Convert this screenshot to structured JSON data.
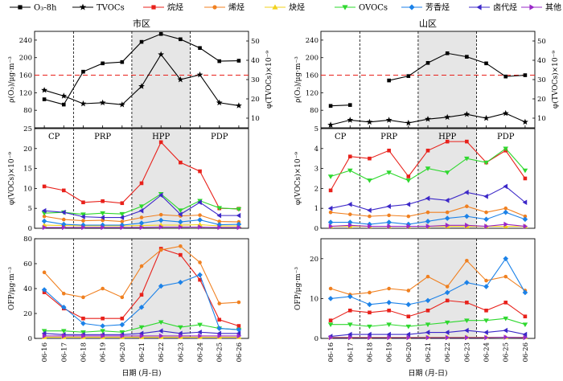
{
  "legend": [
    {
      "key": "O3",
      "label": "O₃-8h",
      "color": "#000000",
      "marker": "square"
    },
    {
      "key": "TVOCs",
      "label": "TVOCs",
      "color": "#000000",
      "marker": "star"
    },
    {
      "key": "alkane",
      "label": "烷烃",
      "color": "#e8211b",
      "marker": "square"
    },
    {
      "key": "alkene",
      "label": "烯烃",
      "color": "#f08020",
      "marker": "circle"
    },
    {
      "key": "alkyne",
      "label": "炔烃",
      "color": "#f2d21c",
      "marker": "triangle-up"
    },
    {
      "key": "ovocs",
      "label": "OVOCs",
      "color": "#2ed82e",
      "marker": "triangle-down"
    },
    {
      "key": "aromatic",
      "label": "芳香烃",
      "color": "#1c82e8",
      "marker": "diamond"
    },
    {
      "key": "halo",
      "label": "卤代烃",
      "color": "#3c28c8",
      "marker": "triangle-left"
    },
    {
      "key": "other",
      "label": "其他",
      "color": "#9a28c8",
      "marker": "triangle-right"
    }
  ],
  "xlabel": "日期 (月-日)",
  "dates": [
    "06-16",
    "06-17",
    "06-18",
    "06-19",
    "06-20",
    "06-21",
    "06-22",
    "06-23",
    "06-24",
    "06-25",
    "06-26"
  ],
  "phases": [
    "CP",
    "PRP",
    "HPP",
    "PDP"
  ],
  "phase_boundaries": [
    1.5,
    4.5,
    7.5
  ],
  "shaded_range": [
    4.5,
    7.5
  ],
  "threshold": {
    "value": 160,
    "color": "#e8211b"
  },
  "chart_data": [
    {
      "type": "line",
      "title": "市区",
      "ylabel_left": "ρ(O₃)/μg·m⁻³",
      "ylabel_right": "φ(TVOCs)×10⁻⁹",
      "ylim_left": [
        40,
        260
      ],
      "yticks_left": [
        80,
        120,
        160,
        200,
        240
      ],
      "ylim_right": [
        5,
        55
      ],
      "yticks_right": [
        10,
        20,
        30,
        40,
        50
      ],
      "series": [
        {
          "key": "O3",
          "axis": "left",
          "values": [
            105,
            93,
            168,
            187,
            190,
            236,
            254,
            242,
            222,
            192,
            193
          ]
        },
        {
          "key": "TVOCs",
          "axis": "right",
          "values": [
            24.5,
            21.5,
            17.5,
            18,
            17,
            26.5,
            43,
            30,
            32.5,
            18,
            16.5
          ]
        }
      ]
    },
    {
      "type": "line",
      "title": "山区",
      "ylabel_left": "ρ(O₃)/μg·m⁻³",
      "ylabel_right": "φ(TVOCs)×10⁻⁹",
      "ylim_left": [
        40,
        260
      ],
      "yticks_left": [
        80,
        120,
        160,
        200,
        240
      ],
      "ylim_right": [
        5,
        55
      ],
      "yticks_right": [
        10,
        20,
        30,
        40,
        50
      ],
      "series": [
        {
          "key": "O3",
          "axis": "left",
          "values": [
            90,
            92,
            null,
            148,
            158,
            188,
            210,
            202,
            187,
            157,
            160
          ]
        },
        {
          "key": "TVOCs",
          "axis": "right",
          "values": [
            6.5,
            9,
            8,
            9,
            7.5,
            9.5,
            10.5,
            12,
            10,
            12.5,
            8
          ]
        }
      ]
    },
    {
      "type": "line",
      "ylabel": "φ(VOCs)×10⁻⁹",
      "ylim": [
        0,
        25
      ],
      "yticks": [
        0,
        5,
        10,
        15,
        20,
        25
      ],
      "series": [
        {
          "key": "alkane",
          "values": [
            10.5,
            9.5,
            6.5,
            6.8,
            6.3,
            11.3,
            21.6,
            16.5,
            14.3,
            5.0,
            4.9
          ]
        },
        {
          "key": "alkene",
          "values": [
            3.0,
            2.2,
            1.9,
            2.0,
            1.7,
            2.7,
            3.4,
            3.1,
            3.3,
            1.7,
            1.6
          ]
        },
        {
          "key": "alkyne",
          "values": [
            0.8,
            0.7,
            0.6,
            0.6,
            0.6,
            0.7,
            0.8,
            0.8,
            0.9,
            0.6,
            0.6
          ]
        },
        {
          "key": "ovocs",
          "values": [
            3.8,
            4.0,
            3.5,
            3.8,
            3.6,
            5.5,
            8.6,
            4.5,
            6.9,
            5.1,
            4.8
          ]
        },
        {
          "key": "aromatic",
          "values": [
            1.8,
            1.0,
            0.8,
            0.8,
            0.8,
            1.3,
            2.0,
            1.6,
            2.1,
            0.9,
            1.0
          ]
        },
        {
          "key": "halo",
          "values": [
            4.4,
            4.0,
            2.9,
            2.7,
            2.7,
            4.4,
            8.3,
            3.5,
            6.5,
            3.2,
            3.2
          ]
        },
        {
          "key": "other",
          "values": [
            0.2,
            0.2,
            0.2,
            0.2,
            0.2,
            0.2,
            0.3,
            0.3,
            0.3,
            0.2,
            0.2
          ]
        }
      ]
    },
    {
      "type": "line",
      "ylabel": "φ(VOCs)×10⁻⁹",
      "ylim": [
        0,
        5
      ],
      "yticks": [
        0,
        1,
        2,
        3,
        4,
        5
      ],
      "series": [
        {
          "key": "alkane",
          "values": [
            1.9,
            3.6,
            3.5,
            3.9,
            2.6,
            3.9,
            4.35,
            4.35,
            3.3,
            3.9,
            2.5
          ]
        },
        {
          "key": "alkene",
          "values": [
            0.8,
            0.7,
            0.6,
            0.65,
            0.6,
            0.8,
            0.8,
            1.1,
            0.8,
            1.0,
            0.6
          ]
        },
        {
          "key": "alkyne",
          "values": [
            0.1,
            0.1,
            0.1,
            0.1,
            0.1,
            0.1,
            0.1,
            0.1,
            0.1,
            0.1,
            0.1
          ]
        },
        {
          "key": "ovocs",
          "values": [
            2.6,
            2.9,
            2.4,
            2.8,
            2.4,
            3.0,
            2.8,
            3.5,
            3.3,
            4.0,
            2.9
          ]
        },
        {
          "key": "aromatic",
          "values": [
            0.3,
            0.3,
            0.2,
            0.3,
            0.2,
            0.35,
            0.5,
            0.6,
            0.45,
            0.8,
            0.45
          ]
        },
        {
          "key": "halo",
          "values": [
            1.0,
            1.2,
            0.9,
            1.1,
            1.2,
            1.5,
            1.4,
            1.8,
            1.6,
            2.1,
            1.3
          ]
        },
        {
          "key": "other",
          "values": [
            0.1,
            0.15,
            0.1,
            0.1,
            0.1,
            0.1,
            0.15,
            0.15,
            0.1,
            0.2,
            0.1
          ]
        }
      ]
    },
    {
      "type": "line",
      "ylabel": "OFP/μg·m⁻³",
      "ylim": [
        0,
        80
      ],
      "yticks": [
        0,
        20,
        40,
        60,
        80
      ],
      "series": [
        {
          "key": "alkane",
          "values": [
            37,
            24,
            16,
            16,
            16,
            35,
            72,
            67,
            47,
            15,
            10
          ]
        },
        {
          "key": "alkene",
          "values": [
            53,
            36,
            33,
            40,
            33,
            58,
            71,
            74,
            61,
            28,
            29
          ]
        },
        {
          "key": "alkyne",
          "values": [
            1,
            1,
            1,
            1,
            1,
            1,
            1,
            1,
            1,
            1,
            1
          ]
        },
        {
          "key": "ovocs",
          "values": [
            6,
            6,
            5,
            6,
            5,
            9,
            13,
            9,
            11,
            8,
            7
          ]
        },
        {
          "key": "aromatic",
          "values": [
            39,
            25,
            12,
            10,
            11,
            25,
            42,
            45,
            51,
            8,
            7
          ]
        },
        {
          "key": "halo",
          "values": [
            4,
            3,
            3,
            3,
            3,
            4,
            6,
            4,
            5,
            4,
            4
          ]
        },
        {
          "key": "other",
          "values": [
            2,
            2,
            2,
            2,
            2,
            2,
            2,
            2,
            2,
            2,
            2
          ]
        }
      ]
    },
    {
      "type": "line",
      "ylabel": "OFP/μg·m⁻³",
      "ylim": [
        0,
        25
      ],
      "yticks": [
        0,
        10,
        20
      ],
      "series": [
        {
          "key": "alkane",
          "values": [
            4.5,
            7.0,
            6.5,
            7.0,
            5.5,
            7.0,
            9.5,
            9.0,
            7.0,
            9.0,
            5.5
          ]
        },
        {
          "key": "alkene",
          "values": [
            12.5,
            11.0,
            11.5,
            12.5,
            12.0,
            15.5,
            13.0,
            19.5,
            14.5,
            15.5,
            12.0
          ]
        },
        {
          "key": "alkyne",
          "values": [
            0.3,
            0.3,
            0.3,
            0.3,
            0.3,
            0.3,
            0.3,
            0.3,
            0.3,
            0.3,
            0.3
          ]
        },
        {
          "key": "ovocs",
          "values": [
            3.5,
            3.5,
            3.0,
            3.5,
            3.0,
            3.5,
            4.0,
            4.5,
            4.5,
            5.0,
            3.5
          ]
        },
        {
          "key": "aromatic",
          "values": [
            10.0,
            10.5,
            8.5,
            9.0,
            8.5,
            9.5,
            11.5,
            14.0,
            13.0,
            20.0,
            11.5
          ]
        },
        {
          "key": "halo",
          "values": [
            0.5,
            1.0,
            1.0,
            1.0,
            1.0,
            1.5,
            1.5,
            2.0,
            1.5,
            2.0,
            1.0
          ]
        },
        {
          "key": "other",
          "values": [
            0.2,
            0.2,
            0.2,
            0.2,
            0.2,
            0.2,
            0.2,
            0.2,
            0.2,
            0.3,
            0.2
          ]
        }
      ]
    }
  ]
}
